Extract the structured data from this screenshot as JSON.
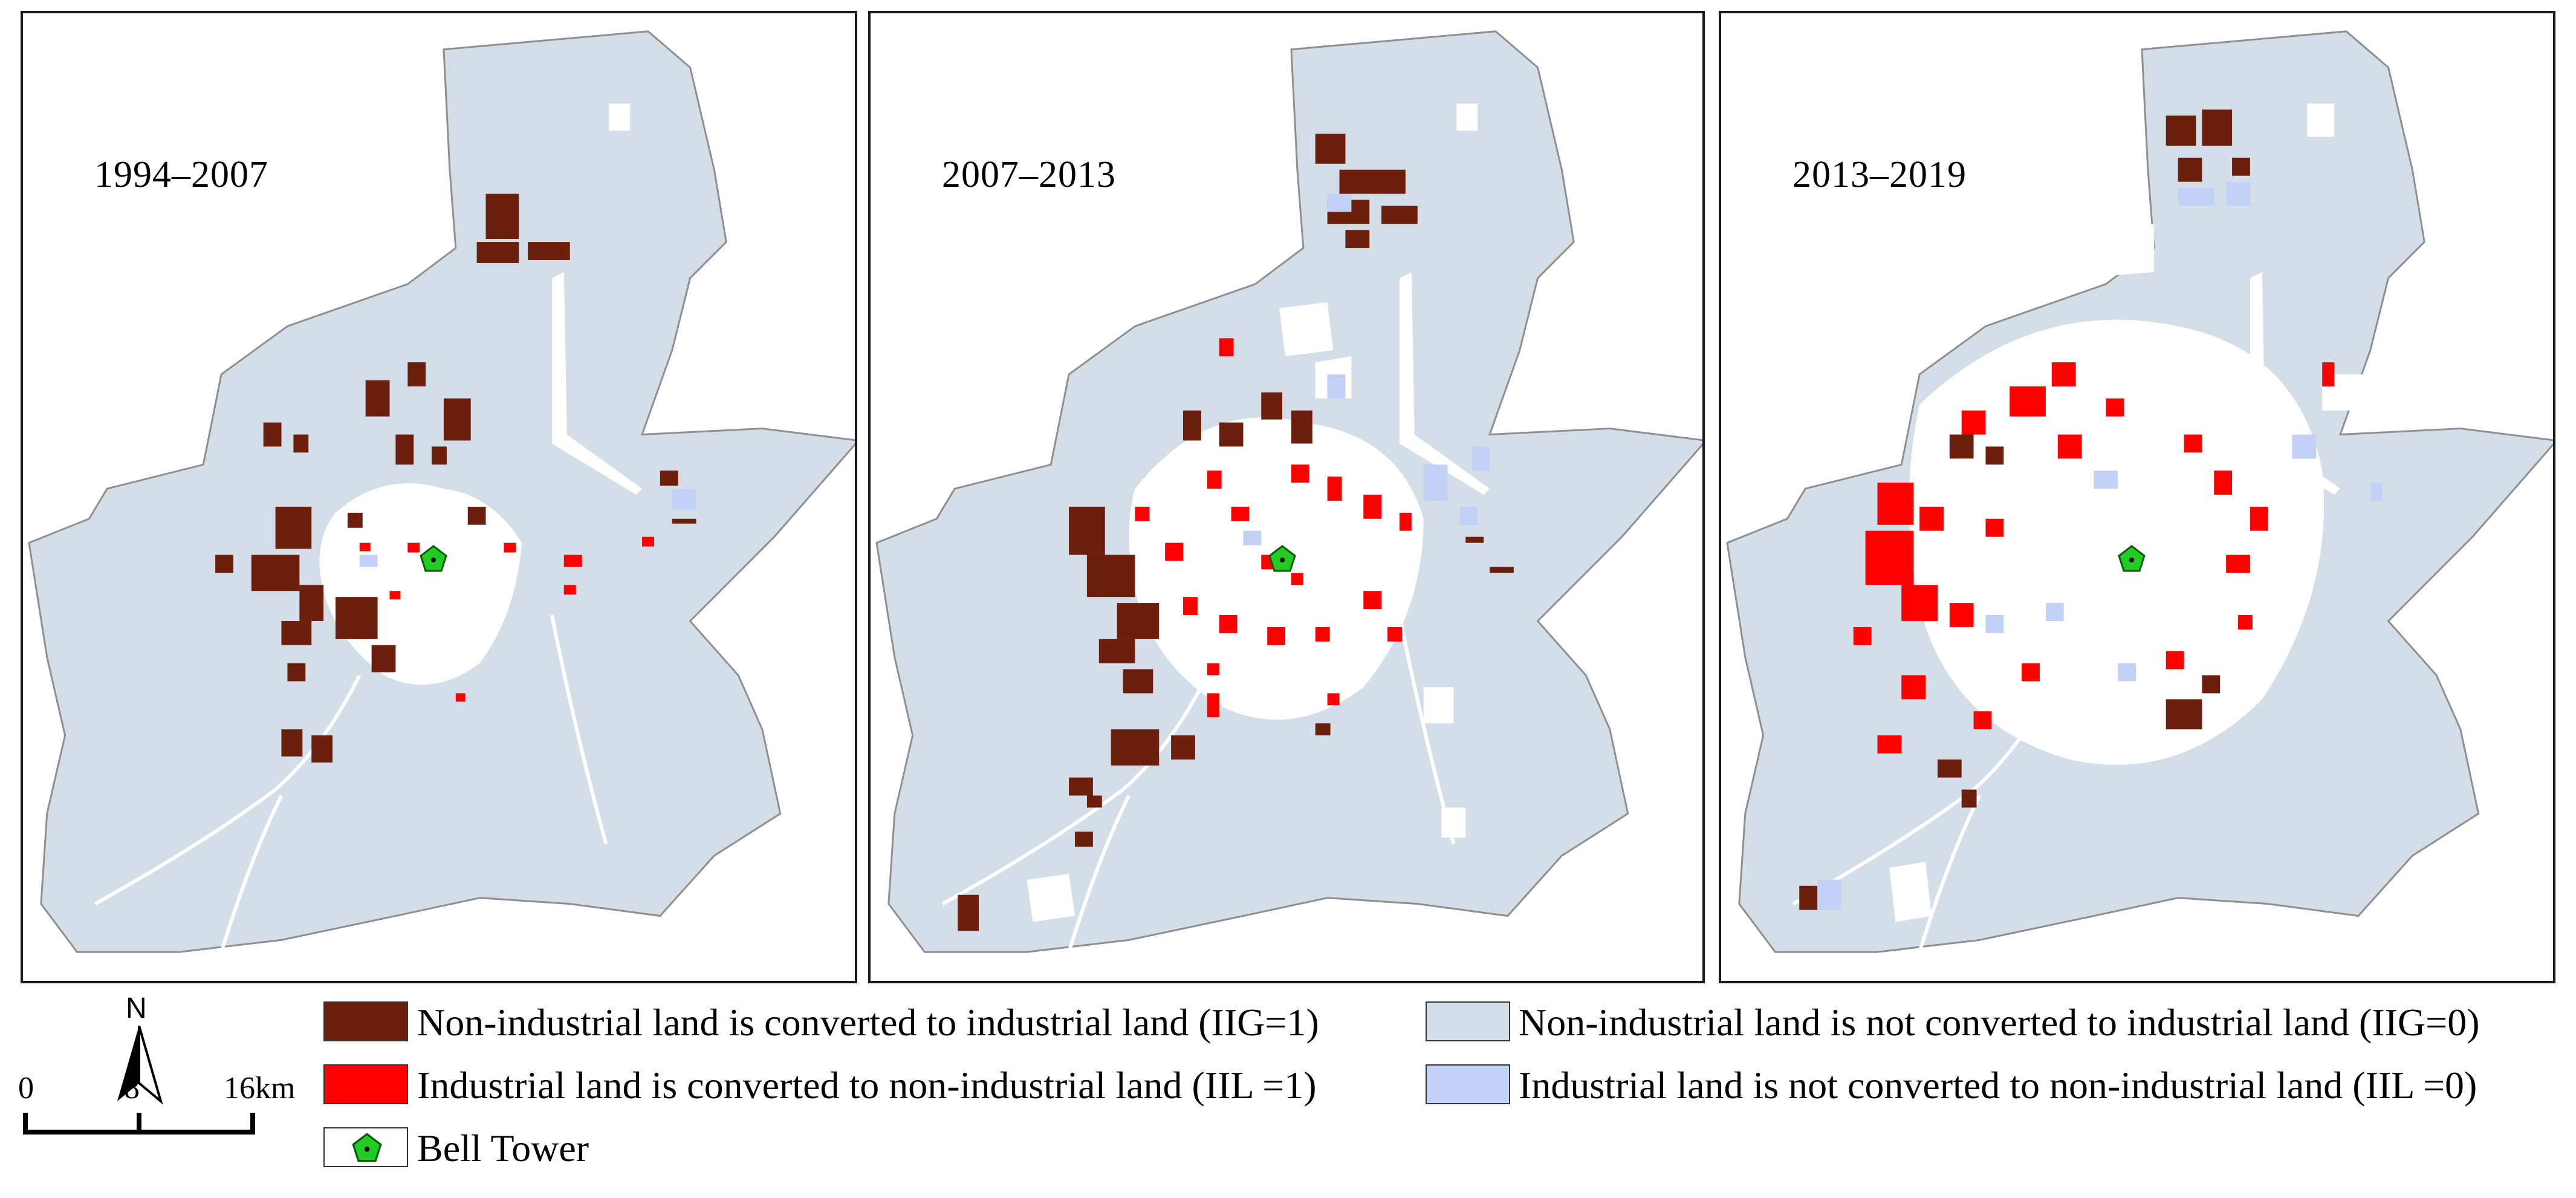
{
  "panels": [
    {
      "id": "p1",
      "label": "1994–2007"
    },
    {
      "id": "p2",
      "label": "2007–2013"
    },
    {
      "id": "p3",
      "label": "2013–2019"
    }
  ],
  "legend": {
    "iig1": {
      "label": "Non-industrial land is converted to industrial land (IIG=1)",
      "color": "#6b1f0c"
    },
    "iil1": {
      "label": "Industrial land is converted to non-industrial land (IIL =1)",
      "color": "#ff0000"
    },
    "bell": {
      "label": "Bell Tower",
      "color": "#22cc22"
    },
    "iig0": {
      "label": "Non-industrial land is not converted to industrial land (IIG=0)",
      "color": "#d3dee9"
    },
    "iil0": {
      "label": "Industrial land is not converted to non-industrial land (IIL =0)",
      "color": "#c3d1f6"
    }
  },
  "north_arrow": {
    "label": "N"
  },
  "scale": {
    "ticks": [
      "0",
      "8",
      "16km"
    ]
  },
  "colors": {
    "base": "#d3dee9",
    "urban": "#ffffff",
    "boundary": "#8f8f8f",
    "frame": "#1a1a1a"
  }
}
